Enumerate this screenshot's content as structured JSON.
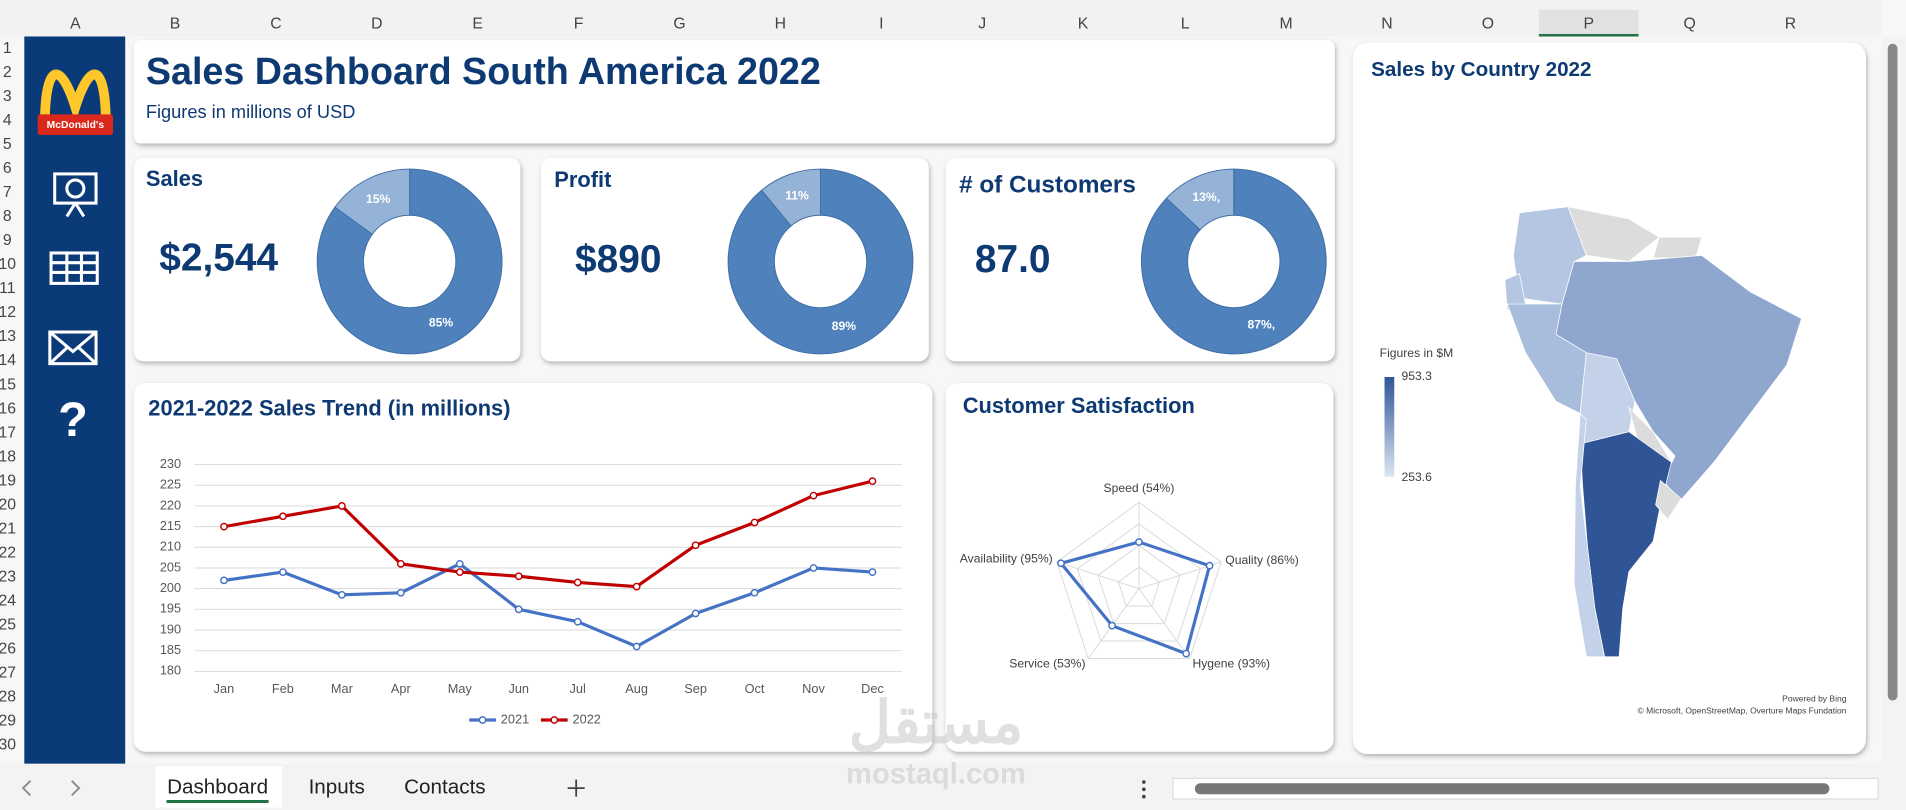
{
  "columns": [
    "A",
    "B",
    "C",
    "D",
    "E",
    "F",
    "G",
    "H",
    "I",
    "J",
    "K",
    "L",
    "M",
    "N",
    "O",
    "P",
    "Q",
    "R"
  ],
  "rows": [
    1,
    2,
    3,
    4,
    5,
    6,
    7,
    8,
    9,
    10,
    11,
    12,
    13,
    14,
    15,
    16,
    17,
    18,
    19,
    20,
    21,
    22,
    23,
    24,
    25,
    26,
    27,
    28,
    29,
    30
  ],
  "sidebar": {
    "logo": "McDonald's",
    "help": "?"
  },
  "header": {
    "title": "Sales Dashboard South America 2022",
    "subtitle": "Figures in millions of USD"
  },
  "kpis": [
    {
      "label": "Sales",
      "value": "$2,544"
    },
    {
      "label": "Profit",
      "value": "$890"
    },
    {
      "label": "# of Customers",
      "value": "87.0"
    }
  ],
  "chart_data": [
    {
      "type": "donut",
      "values": [
        85,
        15
      ],
      "value_labels": [
        "85%",
        "15%"
      ],
      "colors": [
        "#4f81bd",
        "#95b3d7"
      ]
    },
    {
      "type": "donut",
      "values": [
        89,
        11
      ],
      "value_labels": [
        "89%",
        "11%"
      ],
      "colors": [
        "#4f81bd",
        "#95b3d7"
      ]
    },
    {
      "type": "donut",
      "values": [
        87,
        13
      ],
      "value_labels": [
        "87%,",
        "13%,"
      ],
      "colors": [
        "#4f81bd",
        "#95b3d7"
      ]
    },
    {
      "type": "line",
      "title": "2021-2022 Sales Trend (in millions)",
      "categories": [
        "Jan",
        "Feb",
        "Mar",
        "Apr",
        "May",
        "Jun",
        "Jul",
        "Aug",
        "Sep",
        "Oct",
        "Nov",
        "Dec"
      ],
      "series": [
        {
          "name": "2021",
          "color": "#4472c4",
          "values": [
            202,
            204,
            198.5,
            199,
            206,
            195,
            192,
            186,
            194,
            199,
            205,
            204
          ]
        },
        {
          "name": "2022",
          "color": "#c00000",
          "values": [
            215,
            217.5,
            220,
            206,
            204,
            203,
            201.5,
            200.5,
            210.5,
            216,
            222.5,
            226
          ]
        }
      ],
      "ylim": [
        180,
        230
      ],
      "yticks": [
        180,
        185,
        190,
        195,
        200,
        205,
        210,
        215,
        220,
        225,
        230
      ],
      "grid": true
    },
    {
      "type": "radar",
      "title": "Customer Satisfaction",
      "categories": [
        "Speed (54%)",
        "Quality (86%)",
        "Hygene (93%)",
        "Service (53%)",
        "Availability (95%)"
      ],
      "values": [
        54,
        86,
        93,
        53,
        95
      ],
      "rlim": [
        0,
        100
      ],
      "rticks": [
        25,
        50,
        75,
        100
      ],
      "color": "#4472c4"
    }
  ],
  "map": {
    "title": "Sales by Country 2022",
    "legend_title": "Figures in $M",
    "legend_max": 953.3,
    "legend_min": 253.6,
    "credit": "Powered by Bing",
    "attribution": "© Microsoft, OpenStreetMap, Overture Maps Fundation"
  },
  "tabs": [
    "Dashboard",
    "Inputs",
    "Contacts"
  ],
  "watermark": {
    "arabic": "مستقل",
    "latin": "mostaql.com"
  }
}
